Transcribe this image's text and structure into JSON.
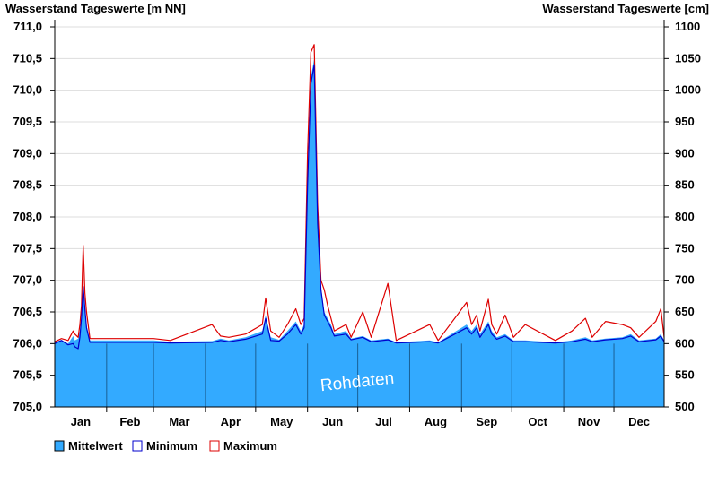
{
  "chart_data": {
    "type": "area",
    "title_left": "Wasserstand Tageswerte [m NN]",
    "title_right": "Wasserstand Tageswerte [cm]",
    "watermark": "Rohdaten",
    "y_left": {
      "min": 705.0,
      "max": 711.0,
      "step": 0.5,
      "ticks": [
        "705,0",
        "705,5",
        "706,0",
        "706,5",
        "707,0",
        "707,5",
        "708,0",
        "708,5",
        "709,0",
        "709,5",
        "710,0",
        "710,5",
        "711,0"
      ]
    },
    "y_right": {
      "min": 500,
      "max": 1100,
      "step": 50,
      "ticks": [
        "500",
        "550",
        "600",
        "650",
        "700",
        "750",
        "800",
        "850",
        "900",
        "950",
        "1000",
        "1050",
        "1100"
      ]
    },
    "months": [
      "Jan",
      "Feb",
      "Mar",
      "Apr",
      "May",
      "Jun",
      "Jul",
      "Aug",
      "Sep",
      "Oct",
      "Nov",
      "Dec"
    ],
    "grid": true,
    "legend_position": "bottom-left",
    "baseline": 706.0,
    "colors": {
      "mittelwert_fill": "#33aaff",
      "minimum_line": "#0000cc",
      "maximum_line": "#dd0000",
      "grid": "#dddddd"
    },
    "series": [
      {
        "name": "Mittelwert",
        "values": [
          [
            1,
            706.02
          ],
          [
            5,
            706.06
          ],
          [
            9,
            706.0
          ],
          [
            12,
            706.12
          ],
          [
            13,
            706.05
          ],
          [
            15,
            706.08
          ],
          [
            16,
            706.2
          ],
          [
            17,
            706.45
          ],
          [
            18,
            706.95
          ],
          [
            19,
            706.6
          ],
          [
            20,
            706.3
          ],
          [
            22,
            706.05
          ],
          [
            60,
            706.05
          ],
          [
            70,
            706.03
          ],
          [
            95,
            706.04
          ],
          [
            100,
            706.08
          ],
          [
            105,
            706.05
          ],
          [
            115,
            706.1
          ],
          [
            125,
            706.2
          ],
          [
            127,
            706.45
          ],
          [
            130,
            706.1
          ],
          [
            135,
            706.06
          ],
          [
            140,
            706.2
          ],
          [
            145,
            706.35
          ],
          [
            148,
            706.2
          ],
          [
            150,
            706.3
          ],
          [
            152,
            708.6
          ],
          [
            154,
            710.2
          ],
          [
            156,
            710.5
          ],
          [
            158,
            708.0
          ],
          [
            160,
            706.9
          ],
          [
            162,
            706.5
          ],
          [
            164,
            706.4
          ],
          [
            166,
            706.3
          ],
          [
            168,
            706.15
          ],
          [
            175,
            706.2
          ],
          [
            178,
            706.08
          ],
          [
            185,
            706.12
          ],
          [
            190,
            706.05
          ],
          [
            200,
            706.08
          ],
          [
            205,
            706.02
          ],
          [
            225,
            706.05
          ],
          [
            230,
            706.02
          ],
          [
            247,
            706.3
          ],
          [
            250,
            706.2
          ],
          [
            253,
            706.3
          ],
          [
            255,
            706.15
          ],
          [
            260,
            706.35
          ],
          [
            262,
            706.2
          ],
          [
            265,
            706.1
          ],
          [
            270,
            706.15
          ],
          [
            275,
            706.05
          ],
          [
            282,
            706.05
          ],
          [
            300,
            706.02
          ],
          [
            310,
            706.05
          ],
          [
            318,
            706.1
          ],
          [
            322,
            706.05
          ],
          [
            330,
            706.08
          ],
          [
            340,
            706.1
          ],
          [
            345,
            706.15
          ],
          [
            350,
            706.05
          ],
          [
            360,
            706.08
          ],
          [
            363,
            706.15
          ],
          [
            365,
            706.05
          ]
        ]
      },
      {
        "name": "Minimum",
        "values": [
          [
            1,
            706.0
          ],
          [
            5,
            706.05
          ],
          [
            9,
            705.98
          ],
          [
            12,
            706.0
          ],
          [
            13,
            705.95
          ],
          [
            15,
            705.92
          ],
          [
            16,
            706.1
          ],
          [
            17,
            706.4
          ],
          [
            18,
            706.9
          ],
          [
            19,
            706.55
          ],
          [
            20,
            706.25
          ],
          [
            22,
            706.02
          ],
          [
            60,
            706.02
          ],
          [
            70,
            706.01
          ],
          [
            95,
            706.02
          ],
          [
            100,
            706.05
          ],
          [
            105,
            706.03
          ],
          [
            115,
            706.07
          ],
          [
            125,
            706.15
          ],
          [
            127,
            706.4
          ],
          [
            130,
            706.05
          ],
          [
            135,
            706.04
          ],
          [
            140,
            706.15
          ],
          [
            145,
            706.3
          ],
          [
            148,
            706.15
          ],
          [
            150,
            706.25
          ],
          [
            152,
            708.5
          ],
          [
            154,
            710.1
          ],
          [
            156,
            710.4
          ],
          [
            158,
            707.9
          ],
          [
            160,
            706.85
          ],
          [
            162,
            706.45
          ],
          [
            164,
            706.35
          ],
          [
            166,
            706.25
          ],
          [
            168,
            706.12
          ],
          [
            175,
            706.15
          ],
          [
            178,
            706.06
          ],
          [
            185,
            706.1
          ],
          [
            190,
            706.03
          ],
          [
            200,
            706.06
          ],
          [
            205,
            706.01
          ],
          [
            225,
            706.03
          ],
          [
            230,
            706.01
          ],
          [
            247,
            706.25
          ],
          [
            250,
            706.15
          ],
          [
            253,
            706.25
          ],
          [
            255,
            706.1
          ],
          [
            260,
            706.3
          ],
          [
            262,
            706.15
          ],
          [
            265,
            706.07
          ],
          [
            270,
            706.12
          ],
          [
            275,
            706.03
          ],
          [
            282,
            706.03
          ],
          [
            300,
            706.01
          ],
          [
            310,
            706.03
          ],
          [
            318,
            706.07
          ],
          [
            322,
            706.03
          ],
          [
            330,
            706.06
          ],
          [
            340,
            706.08
          ],
          [
            345,
            706.12
          ],
          [
            350,
            706.03
          ],
          [
            360,
            706.06
          ],
          [
            363,
            706.12
          ],
          [
            365,
            706.03
          ]
        ]
      },
      {
        "name": "Maximum",
        "values": [
          [
            1,
            706.03
          ],
          [
            5,
            706.08
          ],
          [
            9,
            706.05
          ],
          [
            12,
            706.2
          ],
          [
            13,
            706.15
          ],
          [
            15,
            706.1
          ],
          [
            16,
            706.3
          ],
          [
            17,
            706.6
          ],
          [
            18,
            707.55
          ],
          [
            19,
            706.8
          ],
          [
            20,
            706.5
          ],
          [
            22,
            706.08
          ],
          [
            60,
            706.08
          ],
          [
            70,
            706.05
          ],
          [
            95,
            706.3
          ],
          [
            100,
            706.12
          ],
          [
            105,
            706.1
          ],
          [
            115,
            706.15
          ],
          [
            125,
            706.3
          ],
          [
            127,
            706.72
          ],
          [
            130,
            706.2
          ],
          [
            135,
            706.1
          ],
          [
            140,
            706.3
          ],
          [
            145,
            706.55
          ],
          [
            148,
            706.3
          ],
          [
            150,
            706.4
          ],
          [
            152,
            709.0
          ],
          [
            154,
            710.6
          ],
          [
            156,
            710.72
          ],
          [
            158,
            708.2
          ],
          [
            160,
            707.0
          ],
          [
            162,
            706.85
          ],
          [
            164,
            706.6
          ],
          [
            166,
            706.4
          ],
          [
            168,
            706.2
          ],
          [
            175,
            706.3
          ],
          [
            178,
            706.1
          ],
          [
            185,
            706.5
          ],
          [
            190,
            706.1
          ],
          [
            200,
            706.95
          ],
          [
            205,
            706.05
          ],
          [
            225,
            706.3
          ],
          [
            230,
            706.05
          ],
          [
            247,
            706.65
          ],
          [
            250,
            706.3
          ],
          [
            253,
            706.45
          ],
          [
            255,
            706.2
          ],
          [
            260,
            706.7
          ],
          [
            262,
            706.3
          ],
          [
            265,
            706.15
          ],
          [
            270,
            706.45
          ],
          [
            275,
            706.1
          ],
          [
            282,
            706.3
          ],
          [
            300,
            706.05
          ],
          [
            310,
            706.2
          ],
          [
            318,
            706.4
          ],
          [
            322,
            706.1
          ],
          [
            330,
            706.35
          ],
          [
            340,
            706.3
          ],
          [
            345,
            706.25
          ],
          [
            350,
            706.1
          ],
          [
            360,
            706.35
          ],
          [
            363,
            706.55
          ],
          [
            365,
            706.1
          ]
        ]
      }
    ]
  }
}
